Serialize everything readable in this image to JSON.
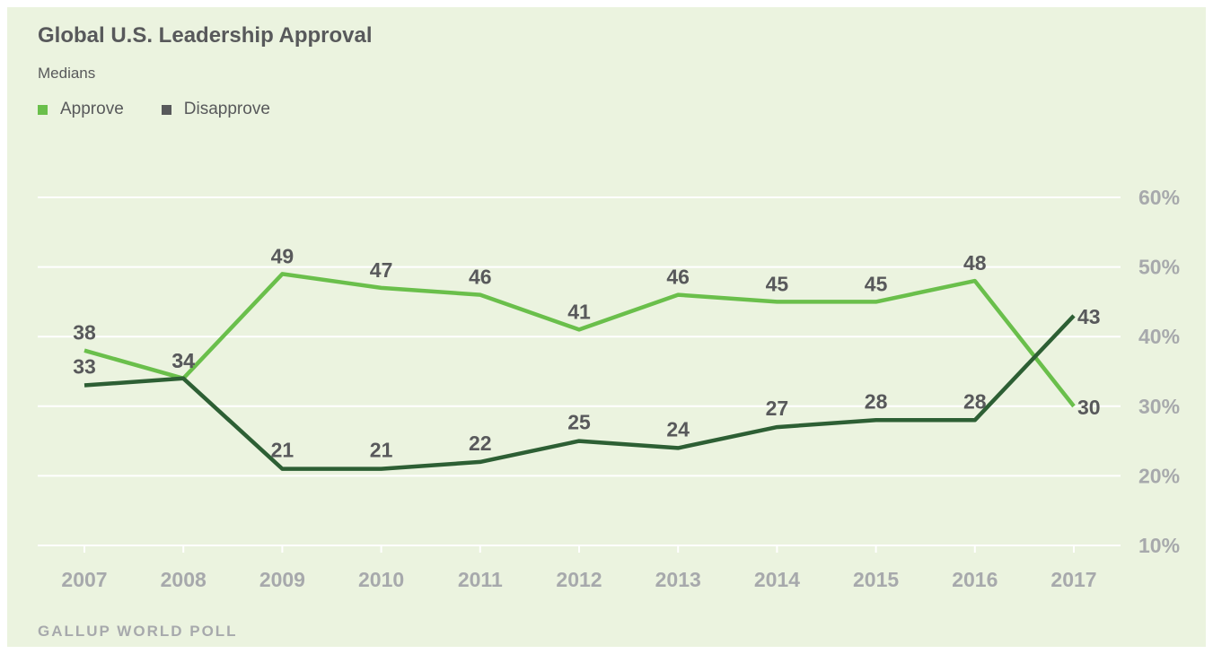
{
  "chart_data": {
    "type": "line",
    "title": "Global U.S. Leadership Approval",
    "subtitle": "Medians",
    "source": "GALLUP WORLD POLL",
    "categories": [
      "2007",
      "2008",
      "2009",
      "2010",
      "2011",
      "2012",
      "2013",
      "2014",
      "2015",
      "2016",
      "2017"
    ],
    "series": [
      {
        "name": "Approve",
        "color": "#6abf4b",
        "values": [
          38,
          34,
          49,
          47,
          46,
          41,
          46,
          45,
          45,
          48,
          30
        ]
      },
      {
        "name": "Disapprove",
        "color": "#2d5f34",
        "legend_color": "#58595b",
        "values": [
          33,
          34,
          21,
          21,
          22,
          25,
          24,
          27,
          28,
          28,
          43
        ]
      }
    ],
    "y_ticks": [
      "10%",
      "20%",
      "30%",
      "40%",
      "50%",
      "60%"
    ],
    "ylim": [
      10,
      60
    ],
    "grid": true,
    "legend_position": "top-left"
  }
}
